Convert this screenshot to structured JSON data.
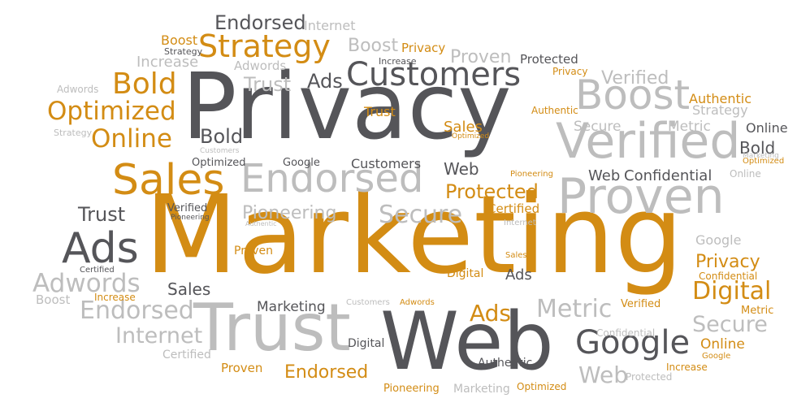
{
  "colors": {
    "orange": "#d38c14",
    "dark": "#555559",
    "light": "#bdbdbd"
  },
  "words": [
    "Endorsed",
    "Internet",
    "Boost",
    "Strategy",
    "Strategy",
    "Boost",
    "Privacy",
    "Increase",
    "Adwords",
    "Increase",
    "Proven",
    "Protected",
    "Bold",
    "Customers",
    "Ads",
    "Trust",
    "Marketing",
    "Adwords",
    "Verified",
    "Optimized",
    "Privacy",
    "Boost",
    "Authentic",
    "Strategy",
    "Trust",
    "Privacy",
    "Online",
    "Strategy",
    "Sales",
    "Secure",
    "Metric",
    "Online",
    "Bold",
    "Verified",
    "Optimized",
    "Customers",
    "Optimized",
    "Google",
    "Customers",
    "Web",
    "Bold",
    "Marketing",
    "Sales",
    "Endorsed",
    "Web",
    "Confidential",
    "Pioneering",
    "Online",
    "Protected",
    "Proven",
    "Trust",
    "Verified",
    "Pioneering",
    "Authentic",
    "Pioneering",
    "Certified",
    "Secure",
    "Internet",
    "Ads",
    "Marketing",
    "Certified",
    "Google",
    "Privacy",
    "Proven",
    "Adwords",
    "Digital",
    "Sales",
    "Confidential",
    "Ads",
    "Digital",
    "Sales",
    "Boost",
    "Endorsed",
    "Increase",
    "Marketing",
    "Customers",
    "Adwords",
    "Verified",
    "Metric",
    "Ads",
    "Metric",
    "Secure",
    "Trust",
    "Web",
    "Internet",
    "Certified",
    "Digital",
    "Confidential",
    "Online",
    "Google",
    "Google",
    "Authentic",
    "Authentic",
    "Proven",
    "Endorsed",
    "Web",
    "Increase",
    "Protected",
    "Pioneering",
    "Optimized"
  ]
}
